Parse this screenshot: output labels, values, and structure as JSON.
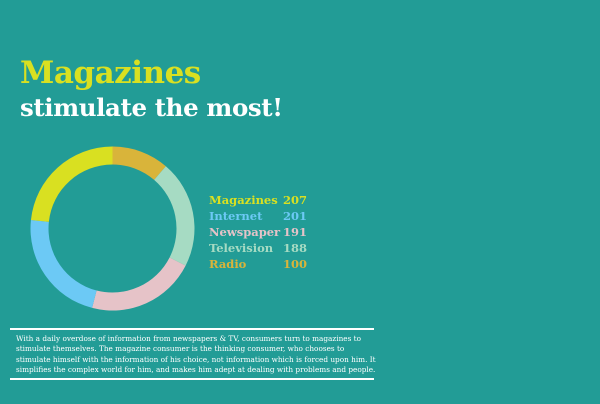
{
  "title": {
    "main": "Magazines",
    "sub": "stimulate the most!"
  },
  "colors": {
    "background": "#229c96",
    "title_main": "#d9e021",
    "title_sub": "#ffffff"
  },
  "chart_data": {
    "type": "pie",
    "style": "donut",
    "categories": [
      "Magazines",
      "Internet",
      "Newspaper",
      "Television",
      "Radio"
    ],
    "values": [
      207,
      201,
      191,
      188,
      100
    ],
    "colors": [
      "#d9e021",
      "#6cc9f5",
      "#e6c3c8",
      "#a6dbc3",
      "#d9b43a"
    ],
    "legend": "right"
  },
  "body_text": "With a daily overdose of information from newspapers & TV, consumers turn to magazines to stimulate themselves. The magazine consumer is the thinking consumer, who chooses to stimulate himself with the information of his choice, not information which is forced upon him. It simplifies the complex world for him, and makes him adept at dealing with problems and people."
}
